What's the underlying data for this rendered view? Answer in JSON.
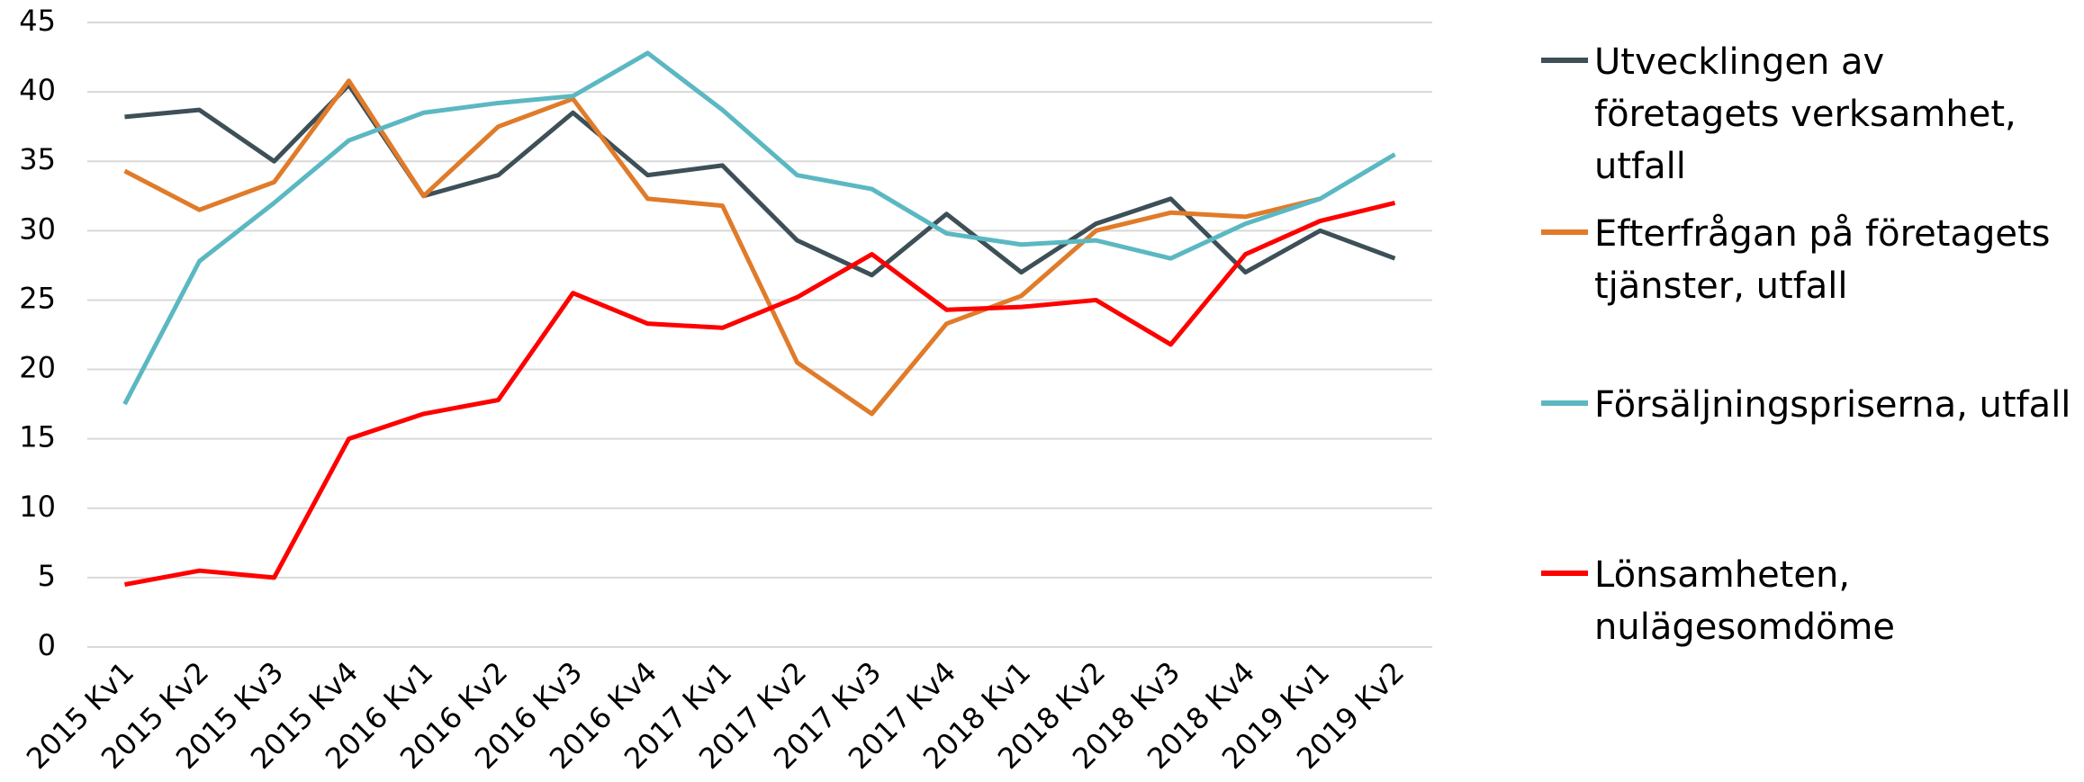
{
  "chart_data": {
    "type": "line",
    "categories": [
      "2015 Kv1",
      "2015 Kv2",
      "2015 Kv3",
      "2015 Kv4",
      "2016 Kv1",
      "2016 Kv2",
      "2016 Kv3",
      "2016 Kv4",
      "2017 Kv1",
      "2017 Kv2",
      "2017 Kv3",
      "2017 Kv4",
      "2018 Kv1",
      "2018 Kv2",
      "2018 Kv3",
      "2018 Kv4",
      "2019 Kv1",
      "2019 Kv2"
    ],
    "series": [
      {
        "name": "Utvecklingen av företagets verksamhet, utfall",
        "color": "#3d4f57",
        "values": [
          38.2,
          38.7,
          35.0,
          40.5,
          32.5,
          34.0,
          38.5,
          34.0,
          34.7,
          29.3,
          26.8,
          31.2,
          27.0,
          30.5,
          32.3,
          27.0,
          30.0,
          28.0
        ]
      },
      {
        "name": "Efterfrågan på företagets tjänster, utfall",
        "color": "#e07b2a",
        "values": [
          34.3,
          31.5,
          33.5,
          40.8,
          32.5,
          37.5,
          39.5,
          32.3,
          31.8,
          20.5,
          16.8,
          23.3,
          25.3,
          30.0,
          31.3,
          31.0,
          32.3,
          null
        ]
      },
      {
        "name": "Försäljningspriserna, utfall",
        "color": "#5bb8c2",
        "values": [
          17.5,
          27.8,
          32.0,
          36.5,
          38.5,
          39.2,
          39.7,
          42.8,
          38.7,
          34.0,
          33.0,
          29.8,
          29.0,
          29.3,
          28.0,
          30.5,
          32.3,
          35.5
        ]
      },
      {
        "name": "Lönsamheten, nulägesomdöme",
        "color": "#ff0000",
        "values": [
          4.5,
          5.5,
          5.0,
          15.0,
          16.8,
          17.8,
          25.5,
          23.3,
          23.0,
          25.2,
          28.3,
          24.3,
          24.5,
          25.0,
          21.8,
          28.3,
          30.7,
          32.0
        ]
      }
    ],
    "ylim": [
      0,
      45
    ],
    "yticks": [
      0,
      5,
      10,
      15,
      20,
      25,
      30,
      35,
      40,
      45
    ],
    "grid": true,
    "legend": "right"
  }
}
